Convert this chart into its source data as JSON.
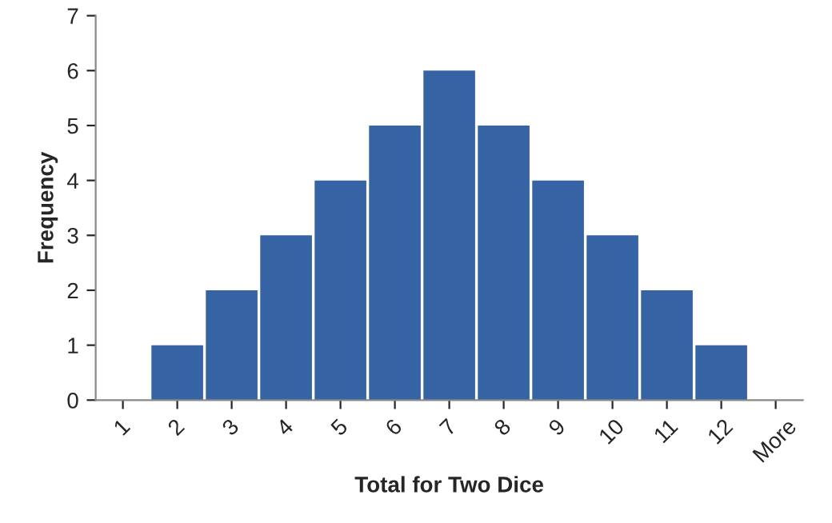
{
  "chart_data": {
    "type": "bar",
    "xlabel": "Total for Two Dice",
    "ylabel": "Frequency",
    "categories": [
      "1",
      "2",
      "3",
      "4",
      "5",
      "6",
      "7",
      "8",
      "9",
      "10",
      "11",
      "12",
      "More"
    ],
    "values": [
      0,
      1,
      2,
      3,
      4,
      5,
      6,
      5,
      4,
      3,
      2,
      1,
      0
    ],
    "color": "#3563a3",
    "ylim": [
      0,
      7
    ],
    "yticks": [
      0,
      1,
      2,
      3,
      4,
      5,
      6,
      7
    ],
    "grid": false,
    "legend": false
  }
}
